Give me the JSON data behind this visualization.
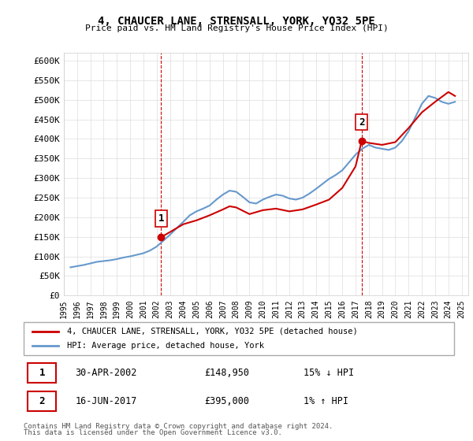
{
  "title": "4, CHAUCER LANE, STRENSALL, YORK, YO32 5PE",
  "subtitle": "Price paid vs. HM Land Registry's House Price Index (HPI)",
  "ylim": [
    0,
    620000
  ],
  "yticks": [
    0,
    50000,
    100000,
    150000,
    200000,
    250000,
    300000,
    350000,
    400000,
    450000,
    500000,
    550000,
    600000
  ],
  "ytick_labels": [
    "£0",
    "£50K",
    "£100K",
    "£150K",
    "£200K",
    "£250K",
    "£300K",
    "£350K",
    "£400K",
    "£450K",
    "£500K",
    "£550K",
    "£600K"
  ],
  "sale1_date": 2002.33,
  "sale1_price": 148950,
  "sale1_label": "1",
  "sale2_date": 2017.46,
  "sale2_price": 395000,
  "sale2_label": "2",
  "red_line_color": "#cc0000",
  "blue_line_color": "#6699cc",
  "vline_color": "#cc0000",
  "background_color": "#ffffff",
  "grid_color": "#dddddd",
  "legend_label_red": "4, CHAUCER LANE, STRENSALL, YORK, YO32 5PE (detached house)",
  "legend_label_blue": "HPI: Average price, detached house, York",
  "footer1": "Contains HM Land Registry data © Crown copyright and database right 2024.",
  "footer2": "This data is licensed under the Open Government Licence v3.0.",
  "table_row1": [
    "1",
    "30-APR-2002",
    "£148,950",
    "15% ↓ HPI"
  ],
  "table_row2": [
    "2",
    "16-JUN-2017",
    "£395,000",
    "1% ↑ HPI"
  ],
  "hpi_data": {
    "years": [
      1995.5,
      1996.0,
      1996.5,
      1997.0,
      1997.5,
      1998.0,
      1998.5,
      1999.0,
      1999.5,
      2000.0,
      2000.5,
      2001.0,
      2001.5,
      2002.0,
      2002.5,
      2003.0,
      2003.5,
      2004.0,
      2004.5,
      2005.0,
      2005.5,
      2006.0,
      2006.5,
      2007.0,
      2007.5,
      2008.0,
      2008.5,
      2009.0,
      2009.5,
      2010.0,
      2010.5,
      2011.0,
      2011.5,
      2012.0,
      2012.5,
      2013.0,
      2013.5,
      2014.0,
      2014.5,
      2015.0,
      2015.5,
      2016.0,
      2016.5,
      2017.0,
      2017.5,
      2018.0,
      2018.5,
      2019.0,
      2019.5,
      2020.0,
      2020.5,
      2021.0,
      2021.5,
      2022.0,
      2022.5,
      2023.0,
      2023.5,
      2024.0,
      2024.5
    ],
    "values": [
      72000,
      75000,
      78000,
      82000,
      86000,
      88000,
      90000,
      93000,
      97000,
      100000,
      104000,
      108000,
      115000,
      125000,
      140000,
      155000,
      172000,
      188000,
      205000,
      215000,
      222000,
      230000,
      245000,
      258000,
      268000,
      265000,
      252000,
      238000,
      235000,
      245000,
      252000,
      258000,
      255000,
      248000,
      245000,
      250000,
      260000,
      272000,
      285000,
      298000,
      308000,
      320000,
      340000,
      360000,
      375000,
      385000,
      378000,
      375000,
      372000,
      378000,
      395000,
      420000,
      455000,
      490000,
      510000,
      505000,
      495000,
      490000,
      495000
    ]
  },
  "red_line_data": {
    "years": [
      2002.33,
      2003.0,
      2004.0,
      2005.0,
      2006.0,
      2007.0,
      2007.5,
      2008.0,
      2009.0,
      2010.0,
      2011.0,
      2012.0,
      2013.0,
      2014.0,
      2015.0,
      2016.0,
      2017.0,
      2017.46,
      2018.0,
      2019.0,
      2020.0,
      2021.0,
      2022.0,
      2023.0,
      2024.0,
      2024.5
    ],
    "values": [
      148950,
      162000,
      182000,
      192000,
      205000,
      220000,
      228000,
      225000,
      208000,
      218000,
      222000,
      215000,
      220000,
      232000,
      245000,
      275000,
      330000,
      395000,
      390000,
      385000,
      392000,
      428000,
      468000,
      495000,
      520000,
      510000
    ]
  }
}
